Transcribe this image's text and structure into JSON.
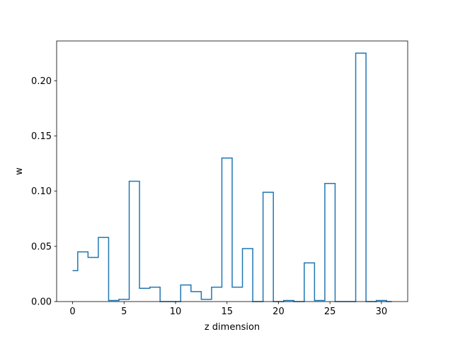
{
  "chart_data": {
    "type": "line",
    "drawstyle": "steps-mid",
    "xlabel": "z dimension",
    "ylabel": "w",
    "xlim": [
      -1.55,
      32.55
    ],
    "ylim": [
      0,
      0.236
    ],
    "xticks": [
      0,
      5,
      10,
      15,
      20,
      25,
      30
    ],
    "xtick_labels": [
      "0",
      "5",
      "10",
      "15",
      "20",
      "25",
      "30"
    ],
    "yticks": [
      0,
      0.05,
      0.1,
      0.15,
      0.2
    ],
    "ytick_labels": [
      "0.00",
      "0.05",
      "0.10",
      "0.15",
      "0.20"
    ],
    "grid": false,
    "series": [
      {
        "color": "#1f77b4",
        "x": [
          0,
          1,
          2,
          3,
          4,
          5,
          6,
          7,
          8,
          9,
          10,
          11,
          12,
          13,
          14,
          15,
          16,
          17,
          18,
          19,
          20,
          21,
          22,
          23,
          24,
          25,
          26,
          27,
          28,
          29,
          30,
          31
        ],
        "values": [
          0.028,
          0.045,
          0.04,
          0.058,
          0.001,
          0.002,
          0.109,
          0.012,
          0.013,
          0.0,
          0.0,
          0.015,
          0.009,
          0.002,
          0.013,
          0.13,
          0.013,
          0.048,
          0.0,
          0.099,
          0.0,
          0.001,
          0.0,
          0.035,
          0.001,
          0.107,
          0.0,
          0.0,
          0.225,
          0.0,
          0.001,
          0.0
        ]
      }
    ]
  }
}
